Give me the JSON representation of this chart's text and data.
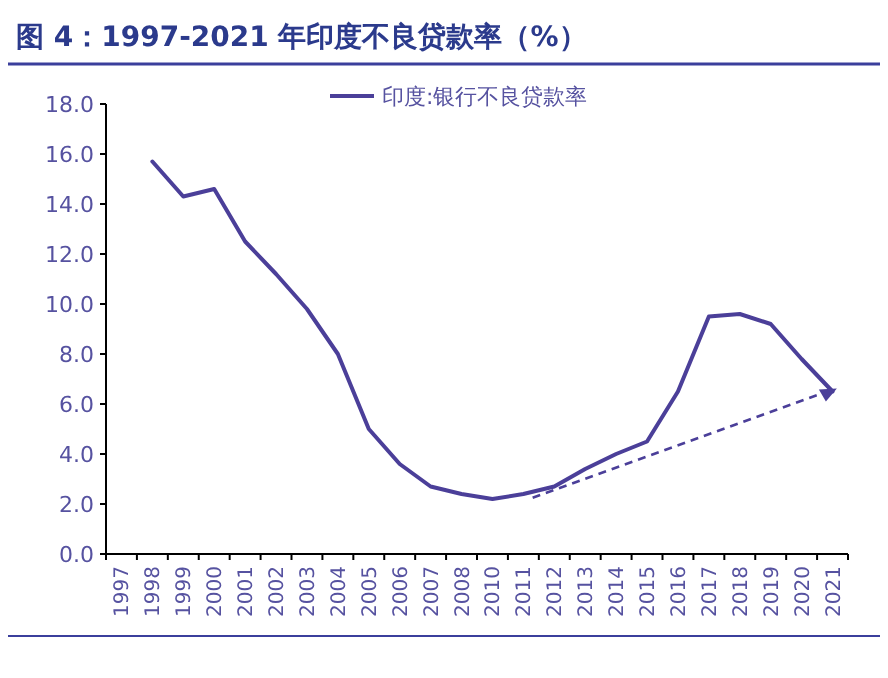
{
  "chart_data": {
    "type": "line",
    "title": "图 4：1997-2021 年印度不良贷款率（%）",
    "categories": [
      "1997",
      "1998",
      "1999",
      "2000",
      "2001",
      "2002",
      "2003",
      "2004",
      "2005",
      "2006",
      "2007",
      "2008",
      "2010",
      "2011",
      "2012",
      "2013",
      "2014",
      "2015",
      "2016",
      "2017",
      "2018",
      "2019",
      "2020",
      "2021"
    ],
    "series": [
      {
        "name": "印度:银行不良贷款率",
        "color": "#4b3f99",
        "values": [
          null,
          15.7,
          14.3,
          14.6,
          12.5,
          11.2,
          9.8,
          8.0,
          5.0,
          3.6,
          2.7,
          2.4,
          2.2,
          2.4,
          2.7,
          3.4,
          4.0,
          4.5,
          6.5,
          9.5,
          9.6,
          9.2,
          7.8,
          6.5
        ]
      }
    ],
    "ylim": [
      0,
      18
    ],
    "yticks": [
      {
        "value": 0,
        "label": "0.0"
      },
      {
        "value": 2,
        "label": "2.0"
      },
      {
        "value": 4,
        "label": "4.0"
      },
      {
        "value": 6,
        "label": "6.0"
      },
      {
        "value": 8,
        "label": "8.0"
      },
      {
        "value": 10,
        "label": "10.0"
      },
      {
        "value": 12,
        "label": "12.0"
      },
      {
        "value": 14,
        "label": "14.0"
      },
      {
        "value": 16,
        "label": "16.0"
      },
      {
        "value": 18,
        "label": "18.0"
      }
    ],
    "grid": false,
    "legend": "top",
    "marker": "none",
    "line_style": "solid"
  }
}
